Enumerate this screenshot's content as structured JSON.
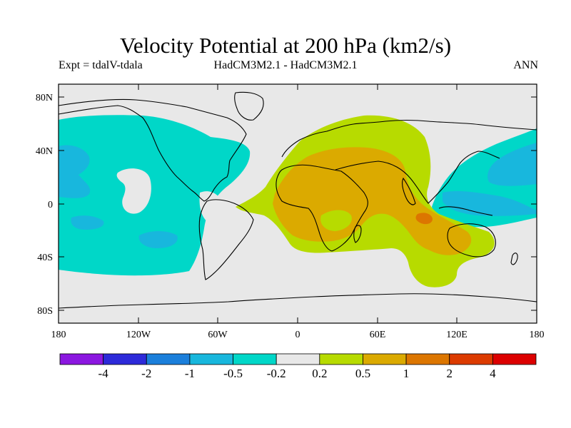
{
  "header": {
    "title": "Velocity Potential at 200 hPa (km2/s)",
    "left_label": "Expt = tdalV-tdala",
    "center_label": "HadCM3M2.1 - HadCM3M2.1",
    "right_label": "ANN"
  },
  "axes": {
    "lat_labels": [
      "80N",
      "40N",
      "0",
      "40S",
      "80S"
    ],
    "lon_labels": [
      "180",
      "120W",
      "60W",
      "0",
      "60E",
      "120E",
      "180"
    ]
  },
  "colorbar": {
    "colors": [
      "#8b17e0",
      "#2d2ad9",
      "#1b7fdb",
      "#18b7dd",
      "#00d7c8",
      "#e8e8e8",
      "#b7db00",
      "#dbaa00",
      "#dc7600",
      "#dc3b00",
      "#dc0000"
    ],
    "labels": [
      "-4",
      "-2",
      "-1",
      "-0.5",
      "-0.2",
      "0.2",
      "0.5",
      "1",
      "2",
      "4"
    ]
  },
  "map": {
    "lat_range": [
      -90,
      90
    ],
    "lon_range": [
      -180,
      180
    ],
    "background_color": "#e8e8e8",
    "contour_colors": {
      "neg_0_2_to_0_5": "#00d7c8",
      "neg_0_5_to_1": "#18b7dd",
      "pos_0_2_to_0_5": "#b7db00",
      "pos_0_5_to_1": "#dbaa00",
      "pos_1_to_2": "#dc7600"
    }
  }
}
